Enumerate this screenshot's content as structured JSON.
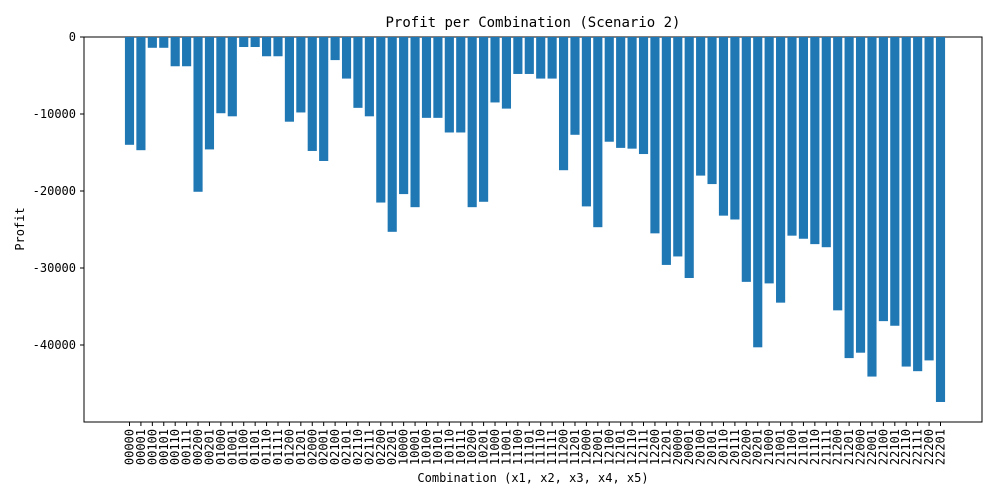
{
  "chart_data": {
    "type": "bar",
    "title": "Profit per Combination (Scenario 2)",
    "xlabel": "Combination (x1, x2, x3, x4, x5)",
    "ylabel": "Profit",
    "ylim": [
      -50000,
      0
    ],
    "yticks": [
      0,
      -10000,
      -20000,
      -30000,
      -40000
    ],
    "grid": false,
    "bar_color": "#1f77b4",
    "categories": [
      "00000",
      "00001",
      "00100",
      "00101",
      "00110",
      "00111",
      "00200",
      "00201",
      "01000",
      "01001",
      "01100",
      "01101",
      "01110",
      "01111",
      "01200",
      "01201",
      "02000",
      "02001",
      "02100",
      "02101",
      "02110",
      "02111",
      "02200",
      "02201",
      "10000",
      "10001",
      "10100",
      "10101",
      "10110",
      "10111",
      "10200",
      "10201",
      "11000",
      "11001",
      "11100",
      "11101",
      "11110",
      "11111",
      "11200",
      "11201",
      "12000",
      "12001",
      "12100",
      "12101",
      "12110",
      "12111",
      "12200",
      "12201",
      "20000",
      "20001",
      "20100",
      "20101",
      "20110",
      "20111",
      "20200",
      "20201",
      "21000",
      "21001",
      "21100",
      "21101",
      "21110",
      "21111",
      "21200",
      "21201",
      "22000",
      "22001",
      "22100",
      "22101",
      "22110",
      "22111",
      "22200",
      "22201"
    ],
    "values": [
      -14000,
      -14700,
      -1400,
      -1400,
      -3800,
      -3800,
      -20100,
      -14600,
      -9900,
      -10300,
      -1300,
      -1300,
      -2500,
      -2500,
      -11000,
      -9800,
      -14800,
      -16100,
      -3000,
      -5400,
      -9200,
      -10300,
      -21500,
      -25300,
      -20400,
      -22100,
      -10500,
      -10500,
      -12400,
      -12400,
      -22100,
      -21400,
      -8500,
      -9300,
      -4800,
      -4800,
      -5400,
      -5400,
      -17300,
      -12700,
      -22000,
      -24700,
      -13600,
      -14400,
      -14500,
      -15200,
      -25500,
      -29600,
      -28500,
      -31300,
      -18000,
      -19100,
      -23200,
      -23700,
      -31800,
      -40300,
      -32000,
      -34500,
      -25800,
      -26200,
      -26900,
      -27300,
      -35500,
      -41700,
      -41000,
      -44100,
      -36900,
      -37500,
      -42800,
      -43400,
      -42000,
      -47400
    ]
  }
}
